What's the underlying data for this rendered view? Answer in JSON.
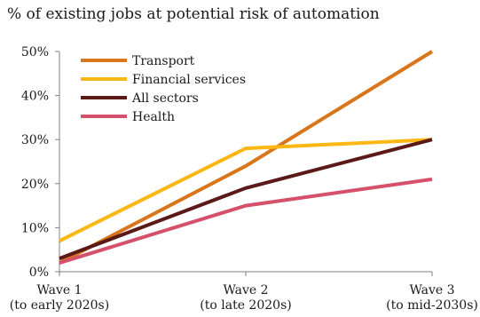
{
  "chart_data": {
    "type": "line",
    "title": "% of existing jobs at potential risk of automation",
    "xlabel": "",
    "ylabel": "",
    "ylim": [
      0,
      50
    ],
    "yticks": [
      "0%",
      "10%",
      "20%",
      "30%",
      "40%",
      "50%"
    ],
    "ytick_values": [
      0,
      10,
      20,
      30,
      40,
      50
    ],
    "categories": [
      "Wave 1",
      "Wave 2",
      "Wave 3"
    ],
    "category_sublabels": [
      "(to early 2020s)",
      "(to late 2020s)",
      "(to mid-2030s)"
    ],
    "grid": false,
    "legend_placement": "top-left",
    "series": [
      {
        "name": "Transport",
        "color": "#d9761c",
        "values": [
          2,
          24,
          50
        ]
      },
      {
        "name": "Financial services",
        "color": "#fdb714",
        "values": [
          7,
          28,
          30
        ]
      },
      {
        "name": "All sectors",
        "color": "#5b1a18",
        "values": [
          3,
          19,
          30
        ]
      },
      {
        "name": "Health",
        "color": "#d5506a",
        "values": [
          2,
          15,
          21
        ]
      }
    ]
  }
}
